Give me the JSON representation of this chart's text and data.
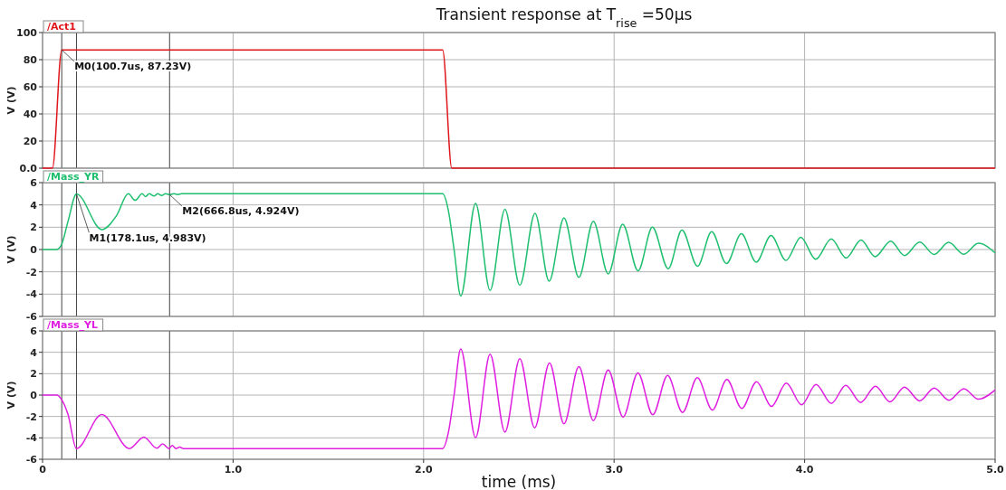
{
  "chart_data": [
    {
      "type": "line",
      "title": "Transient response at T$_{rise}$ =50μs",
      "ylabel": "V (V)",
      "xlim": [
        0,
        5
      ],
      "xticks": [
        0,
        1,
        2,
        3,
        4,
        5
      ],
      "ylim": [
        0,
        100
      ],
      "yticks": [
        {
          "value": 0,
          "label": "0.0"
        },
        20,
        40,
        60,
        80,
        100
      ],
      "grid": true,
      "legend": "top left",
      "tick_labels": "y",
      "series": [
        {
          "name": "/Act1",
          "color": "#e0161b",
          "x": [
            0,
            0.052,
            0.1007,
            2.1,
            2.148,
            5
          ],
          "values": [
            0,
            0,
            87.23,
            87.23,
            0,
            0
          ]
        }
      ],
      "ref_lines": [
        {
          "axis": "x",
          "value": 0.1007,
          "color": "#444444"
        },
        {
          "axis": "x",
          "value": 0.1781,
          "color": "#444444"
        },
        {
          "axis": "x",
          "value": 0.6668,
          "color": "#444444"
        }
      ],
      "annotations": [
        {
          "text": "M0(100.7us, 87.23V)",
          "x": 0.1007,
          "y": 87.23
        }
      ]
    },
    {
      "type": "line",
      "ylabel": "V (V)",
      "xlim": [
        0,
        5
      ],
      "xticks": [
        0,
        1,
        2,
        3,
        4,
        5
      ],
      "ylim": [
        -6,
        6
      ],
      "yticks": [
        -6,
        -4,
        -2,
        0,
        2,
        4,
        6
      ],
      "grid": true,
      "legend": "top left",
      "tick_labels": "y",
      "series": [
        {
          "name": "/Mass_YR",
          "color": "#1fbf6f",
          "x": [
            0,
            0.074,
            0.099,
            0.133,
            0.1781,
            0.311,
            0.388,
            0.45,
            0.486,
            0.523,
            0.54,
            0.56,
            0.585,
            0.605,
            0.625,
            0.645,
            0.6668,
            0.69,
            0.71,
            0.73,
            0.9,
            2.1,
            2.13,
            2.16,
            2.195,
            2.273,
            2.349,
            2.427,
            2.505,
            2.585,
            2.659,
            2.737,
            2.815,
            2.891,
            2.969,
            3.045,
            3.126,
            3.201,
            3.284,
            3.356,
            3.438,
            3.512,
            3.59,
            3.668,
            3.746,
            3.824,
            3.902,
            3.98,
            4.058,
            4.14,
            4.218,
            4.296,
            4.37,
            4.452,
            4.524,
            4.604,
            4.68,
            4.756,
            4.836,
            4.912,
            5
          ],
          "values": [
            0,
            0,
            0.41,
            2.48,
            4.983,
            1.79,
            3.03,
            5.0,
            4.41,
            5.0,
            4.75,
            5.0,
            4.8,
            5.0,
            4.85,
            5.0,
            4.924,
            5.0,
            4.93,
            5.0,
            5.0,
            5.0,
            3.5,
            0,
            -4.17,
            4.14,
            -3.67,
            3.61,
            -3.21,
            3.24,
            -2.84,
            2.84,
            -2.5,
            2.53,
            -2.19,
            2.28,
            -1.91,
            2.0,
            -1.72,
            1.75,
            -1.5,
            1.6,
            -1.26,
            1.41,
            -1.13,
            1.26,
            -0.98,
            1.1,
            -0.88,
            0.95,
            -0.76,
            0.85,
            -0.64,
            0.76,
            -0.54,
            0.67,
            -0.45,
            0.64,
            -0.42,
            0.57,
            -0.3
          ]
        }
      ],
      "ref_lines": [
        {
          "axis": "x",
          "value": 0.1007,
          "color": "#444444"
        },
        {
          "axis": "x",
          "value": 0.1781,
          "color": "#444444"
        },
        {
          "axis": "x",
          "value": 0.6668,
          "color": "#444444"
        }
      ],
      "annotations": [
        {
          "text": "M1(178.1us, 4.983V)",
          "x": 0.1781,
          "y": 4.983
        },
        {
          "text": "M2(666.8us, 4.924V)",
          "x": 0.6668,
          "y": 4.924
        }
      ]
    },
    {
      "type": "line",
      "ylabel": "V (V)",
      "xlabel": "time (ms)",
      "xlim": [
        0,
        5
      ],
      "xticks": [
        {
          "value": 0,
          "label": "0"
        },
        {
          "value": 1,
          "label": "1.0"
        },
        {
          "value": 2,
          "label": "2.0"
        },
        {
          "value": 3,
          "label": "3.0"
        },
        {
          "value": 4,
          "label": "4.0"
        },
        {
          "value": 5,
          "label": "5.0"
        }
      ],
      "ylim": [
        -6,
        6
      ],
      "yticks": [
        -6,
        -4,
        -2,
        0,
        2,
        4,
        6
      ],
      "grid": true,
      "legend": "top left",
      "series": [
        {
          "name": "/Mass_YL",
          "color": "#e020e0",
          "x": [
            0,
            0.074,
            0.099,
            0.133,
            0.1781,
            0.311,
            0.456,
            0.532,
            0.6,
            0.63,
            0.663,
            0.681,
            0.7,
            0.72,
            0.74,
            0.9,
            2.1,
            2.13,
            2.16,
            2.195,
            2.273,
            2.349,
            2.427,
            2.505,
            2.583,
            2.661,
            2.737,
            2.815,
            2.891,
            2.969,
            3.047,
            3.125,
            3.203,
            3.281,
            3.359,
            3.437,
            3.516,
            3.592,
            3.67,
            3.748,
            3.826,
            3.904,
            3.984,
            4.06,
            4.14,
            4.216,
            4.294,
            4.372,
            4.448,
            4.524,
            4.604,
            4.68,
            4.758,
            4.836,
            4.912,
            5
          ],
          "values": [
            0,
            0,
            -0.39,
            -1.78,
            -5.0,
            -1.81,
            -5.0,
            -3.92,
            -4.97,
            -4.56,
            -5.0,
            -4.72,
            -5.0,
            -4.85,
            -5.0,
            -5.0,
            -5.0,
            -3.5,
            0,
            4.32,
            -3.98,
            3.83,
            -3.46,
            3.4,
            -3.06,
            3.0,
            -2.69,
            2.66,
            -2.38,
            2.35,
            -2.05,
            2.08,
            -1.83,
            1.83,
            -1.62,
            1.62,
            -1.4,
            1.46,
            -1.25,
            1.25,
            -1.06,
            1.12,
            -0.91,
            1.0,
            -0.78,
            0.91,
            -0.69,
            0.82,
            -0.63,
            0.75,
            -0.54,
            0.66,
            -0.48,
            0.6,
            -0.38,
            0.48
          ]
        }
      ],
      "ref_lines": [
        {
          "axis": "x",
          "value": 0.1007,
          "color": "#444444"
        },
        {
          "axis": "x",
          "value": 0.1781,
          "color": "#444444"
        },
        {
          "axis": "x",
          "value": 0.6668,
          "color": "#444444"
        }
      ]
    }
  ]
}
